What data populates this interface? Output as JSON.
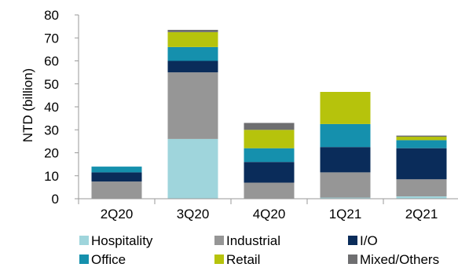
{
  "chart_data": {
    "type": "bar",
    "stacked": true,
    "categories": [
      "2Q20",
      "3Q20",
      "4Q20",
      "1Q21",
      "2Q21"
    ],
    "ylabel": "NTD (billion)",
    "xlabel": "",
    "ylim": [
      0,
      80
    ],
    "yticks": [
      "0",
      "10",
      "20",
      "30",
      "40",
      "50",
      "60",
      "70",
      "80"
    ],
    "grid": false,
    "legend_position": "bottom",
    "series": [
      {
        "name": "Hospitality",
        "color": "#9fd5dc",
        "values": [
          0,
          26,
          0,
          0.5,
          1
        ]
      },
      {
        "name": "Industrial",
        "color": "#969696",
        "values": [
          7.5,
          29,
          7,
          11,
          7.5
        ]
      },
      {
        "name": "I/O",
        "color": "#0a2c5a",
        "values": [
          4,
          5,
          9,
          11,
          13.5
        ]
      },
      {
        "name": "Office",
        "color": "#1590ad",
        "values": [
          2.5,
          6,
          6,
          10,
          3.5
        ]
      },
      {
        "name": "Retail",
        "color": "#b6c30c",
        "values": [
          0,
          6.5,
          8,
          14,
          1.5
        ]
      },
      {
        "name": "Mixed/Others",
        "color": "#6e6e70",
        "values": [
          0,
          1,
          3,
          0,
          0.5
        ]
      }
    ]
  }
}
